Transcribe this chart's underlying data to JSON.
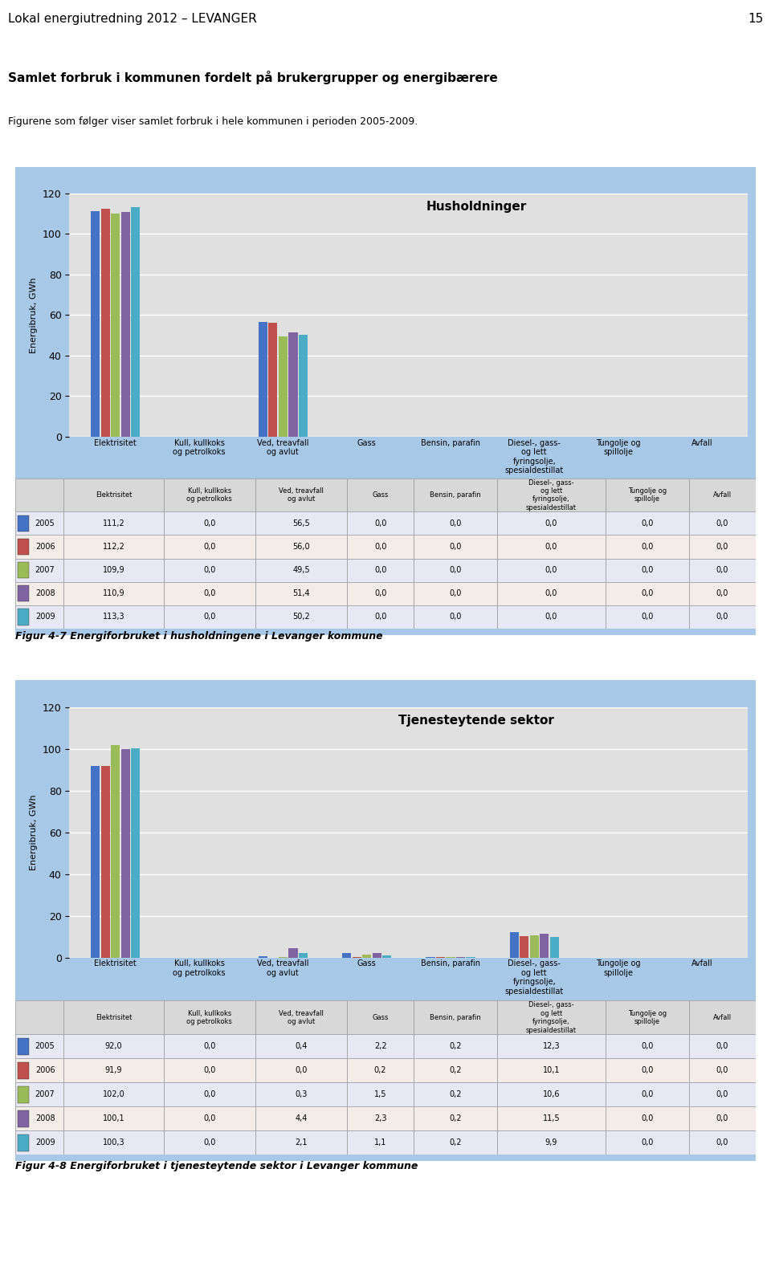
{
  "page_header": "Lokal energiutredning 2012 – LEVANGER",
  "page_number": "15",
  "section_title": "Samlet forbruk i kommunen fordelt på brukergrupper og energibærere",
  "section_subtitle": "Figurene som følger viser samlet forbruk i hele kommunen i perioden 2005-2009.",
  "chart1": {
    "title": "Husholdninger",
    "ylabel": "Energibruk, GWh",
    "ylim": [
      0,
      120
    ],
    "yticks": [
      0,
      20,
      40,
      60,
      80,
      100,
      120
    ],
    "years": [
      2005,
      2006,
      2007,
      2008,
      2009
    ],
    "categories": [
      "Elektrisitet",
      "Kull, kullkoks\nog petrolkoks",
      "Ved, treavfall\nog avlut",
      "Gass",
      "Bensin, parafin",
      "Diesel-, gass-\nog lett\nfyringsolje,\nspesialdestillat",
      "Tungolje og\nspillolje",
      "Avfall"
    ],
    "data": {
      "2005": [
        111.2,
        0.0,
        56.5,
        0.0,
        0.0,
        0.0,
        0.0,
        0.0
      ],
      "2006": [
        112.2,
        0.0,
        56.0,
        0.0,
        0.0,
        0.0,
        0.0,
        0.0
      ],
      "2007": [
        109.9,
        0.0,
        49.5,
        0.0,
        0.0,
        0.0,
        0.0,
        0.0
      ],
      "2008": [
        110.9,
        0.0,
        51.4,
        0.0,
        0.0,
        0.0,
        0.0,
        0.0
      ],
      "2009": [
        113.3,
        0.0,
        50.2,
        0.0,
        0.0,
        0.0,
        0.0,
        0.0
      ]
    },
    "caption": "Figur 4-7 Energiforbruket i husholdningene i Levanger kommune"
  },
  "chart2": {
    "title": "Tjenesteytende sektor",
    "ylabel": "Energibruk, GWh",
    "ylim": [
      0,
      120
    ],
    "yticks": [
      0,
      20,
      40,
      60,
      80,
      100,
      120
    ],
    "years": [
      2005,
      2006,
      2007,
      2008,
      2009
    ],
    "categories": [
      "Elektrisitet",
      "Kull, kullkoks\nog petrolkoks",
      "Ved, treavfall\nog avlut",
      "Gass",
      "Bensin, parafin",
      "Diesel-, gass-\nog lett\nfyringsolje,\nspesialdestillat",
      "Tungolje og\nspillolje",
      "Avfall"
    ],
    "data": {
      "2005": [
        92.0,
        0.0,
        0.4,
        2.2,
        0.2,
        12.3,
        0.0,
        0.0
      ],
      "2006": [
        91.9,
        0.0,
        0.0,
        0.2,
        0.2,
        10.1,
        0.0,
        0.0
      ],
      "2007": [
        102.0,
        0.0,
        0.3,
        1.5,
        0.2,
        10.6,
        0.0,
        0.0
      ],
      "2008": [
        100.1,
        0.0,
        4.4,
        2.3,
        0.2,
        11.5,
        0.0,
        0.0
      ],
      "2009": [
        100.3,
        0.0,
        2.1,
        1.1,
        0.2,
        9.9,
        0.0,
        0.0
      ]
    },
    "caption": "Figur 4-8 Energiforbruket i tjenesteytende sektor i Levanger kommune"
  },
  "bar_colors": [
    "#4472C4",
    "#C0504D",
    "#9BBB59",
    "#8064A2",
    "#4BACC6"
  ],
  "outer_bg": "#A8C8E8",
  "inner_bg": "#E0E0E0",
  "grid_color": "#FFFFFF",
  "table_alt1": "#E8E8F4",
  "table_alt2": "#F4E8E8"
}
